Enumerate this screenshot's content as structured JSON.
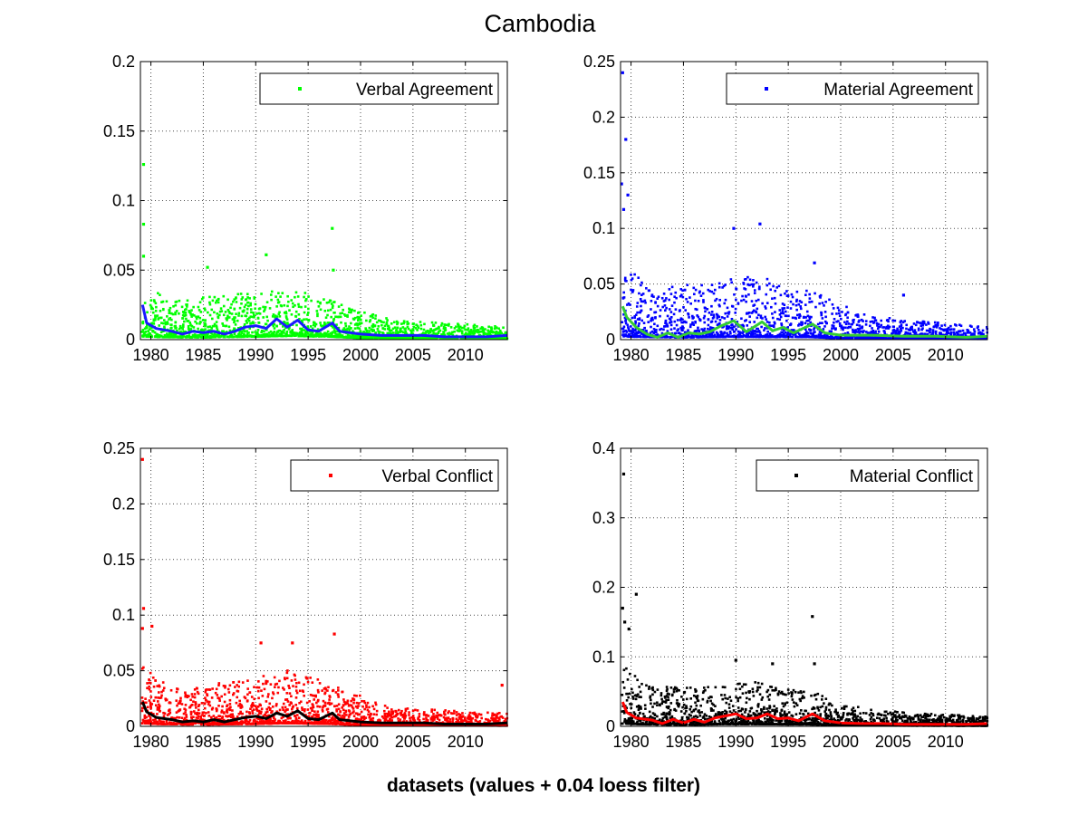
{
  "figure": {
    "title": "Cambodia",
    "footer": "datasets (values + 0.04 loess filter)"
  },
  "chart_data": [
    {
      "type": "scatter",
      "title": "",
      "xlabel": "",
      "ylabel": "",
      "xlim": [
        1979,
        2014
      ],
      "ylim": [
        0,
        0.2
      ],
      "xticks": [
        1980,
        1985,
        1990,
        1995,
        2000,
        2005,
        2010
      ],
      "yticks": [
        0,
        0.05,
        0.1,
        0.15,
        0.2
      ],
      "grid": true,
      "legend": {
        "placement": "top-right",
        "entries": [
          "Verbal Agreement"
        ]
      },
      "series": [
        {
          "name": "Verbal Agreement",
          "kind": "points",
          "color": "#00ff00",
          "marker": "dot",
          "profile": {
            "baseline": [
              [
                1979,
                0.012
              ],
              [
                1981,
                0.009
              ],
              [
                1985,
                0.008
              ],
              [
                1990,
                0.011
              ],
              [
                1993,
                0.013
              ],
              [
                1997,
                0.011
              ],
              [
                2000,
                0.006
              ],
              [
                2005,
                0.004
              ],
              [
                2014,
                0.003
              ]
            ],
            "spread": [
              [
                1979,
                0.035
              ],
              [
                1982,
                0.025
              ],
              [
                1988,
                0.028
              ],
              [
                1993,
                0.032
              ],
              [
                1998,
                0.022
              ],
              [
                2003,
                0.012
              ],
              [
                2014,
                0.008
              ]
            ]
          },
          "notable_points": [
            [
              1979.3,
              0.126
            ],
            [
              1979.3,
              0.083
            ],
            [
              1979.3,
              0.06
            ],
            [
              1985.4,
              0.052
            ],
            [
              1991.0,
              0.061
            ],
            [
              1997.3,
              0.08
            ],
            [
              1997.4,
              0.05
            ]
          ]
        },
        {
          "name": "",
          "kind": "line",
          "color": "#1a1aff",
          "points": [
            [
              1979.2,
              0.025
            ],
            [
              1979.6,
              0.012
            ],
            [
              1980.5,
              0.008
            ],
            [
              1982,
              0.006
            ],
            [
              1983,
              0.004
            ],
            [
              1984,
              0.006
            ],
            [
              1985,
              0.005
            ],
            [
              1986,
              0.006
            ],
            [
              1987,
              0.004
            ],
            [
              1988,
              0.006
            ],
            [
              1989,
              0.009
            ],
            [
              1990,
              0.01
            ],
            [
              1991,
              0.008
            ],
            [
              1992,
              0.015
            ],
            [
              1993,
              0.009
            ],
            [
              1994,
              0.014
            ],
            [
              1995,
              0.007
            ],
            [
              1996,
              0.006
            ],
            [
              1997.3,
              0.012
            ],
            [
              1998,
              0.006
            ],
            [
              2000,
              0.004
            ],
            [
              2002,
              0.003
            ],
            [
              2004,
              0.003
            ],
            [
              2006,
              0.003
            ],
            [
              2008,
              0.002
            ],
            [
              2010,
              0.002
            ],
            [
              2012,
              0.002
            ],
            [
              2014,
              0.003
            ]
          ]
        }
      ]
    },
    {
      "type": "scatter",
      "title": "",
      "xlabel": "",
      "ylabel": "",
      "xlim": [
        1979,
        2014
      ],
      "ylim": [
        0,
        0.25
      ],
      "xticks": [
        1980,
        1985,
        1990,
        1995,
        2000,
        2005,
        2010
      ],
      "yticks": [
        0,
        0.05,
        0.1,
        0.15,
        0.2,
        0.25
      ],
      "grid": true,
      "legend": {
        "placement": "top-right",
        "entries": [
          "Material Agreement"
        ]
      },
      "series": [
        {
          "name": "Material Agreement",
          "kind": "points",
          "color": "#0000ff",
          "marker": "dot",
          "profile": {
            "baseline": [
              [
                1979,
                0.015
              ],
              [
                1981,
                0.012
              ],
              [
                1985,
                0.01
              ],
              [
                1990,
                0.013
              ],
              [
                1993,
                0.012
              ],
              [
                1997,
                0.012
              ],
              [
                2000,
                0.006
              ],
              [
                2005,
                0.004
              ],
              [
                2014,
                0.003
              ]
            ],
            "spread": [
              [
                1979,
                0.06
              ],
              [
                1982,
                0.04
              ],
              [
                1988,
                0.045
              ],
              [
                1992,
                0.05
              ],
              [
                1998,
                0.035
              ],
              [
                2003,
                0.018
              ],
              [
                2014,
                0.01
              ]
            ]
          },
          "notable_points": [
            [
              1979.2,
              0.24
            ],
            [
              1979.5,
              0.18
            ],
            [
              1979.1,
              0.14
            ],
            [
              1979.7,
              0.13
            ],
            [
              1979.3,
              0.117
            ],
            [
              1989.8,
              0.1
            ],
            [
              1992.3,
              0.104
            ],
            [
              1997.5,
              0.069
            ],
            [
              2006.0,
              0.04
            ]
          ]
        },
        {
          "name": "",
          "kind": "line",
          "color": "#33cc33",
          "points": [
            [
              1979.2,
              0.03
            ],
            [
              1979.6,
              0.02
            ],
            [
              1980.5,
              0.011
            ],
            [
              1981.5,
              0.005
            ],
            [
              1982.5,
              0.002
            ],
            [
              1983.5,
              0.006
            ],
            [
              1984.5,
              0.002
            ],
            [
              1985.5,
              0.006
            ],
            [
              1986.5,
              0.005
            ],
            [
              1987.5,
              0.007
            ],
            [
              1988.5,
              0.012
            ],
            [
              1989.8,
              0.017
            ],
            [
              1991,
              0.007
            ],
            [
              1992.5,
              0.016
            ],
            [
              1993.5,
              0.008
            ],
            [
              1994.5,
              0.011
            ],
            [
              1995.5,
              0.006
            ],
            [
              1997.3,
              0.014
            ],
            [
              1998.5,
              0.006
            ],
            [
              2000,
              0.004
            ],
            [
              2003,
              0.004
            ],
            [
              2006,
              0.003
            ],
            [
              2009,
              0.003
            ],
            [
              2012,
              0.002
            ],
            [
              2014,
              0.003
            ]
          ]
        }
      ]
    },
    {
      "type": "scatter",
      "title": "",
      "xlabel": "",
      "ylabel": "",
      "xlim": [
        1979,
        2014
      ],
      "ylim": [
        0,
        0.25
      ],
      "xticks": [
        1980,
        1985,
        1990,
        1995,
        2000,
        2005,
        2010
      ],
      "yticks": [
        0,
        0.05,
        0.1,
        0.15,
        0.2,
        0.25
      ],
      "grid": true,
      "legend": {
        "placement": "top-right",
        "entries": [
          "Verbal Conflict"
        ]
      },
      "series": [
        {
          "name": "Verbal Conflict",
          "kind": "points",
          "color": "#ff0000",
          "marker": "dot",
          "profile": {
            "baseline": [
              [
                1979,
                0.014
              ],
              [
                1981,
                0.01
              ],
              [
                1985,
                0.008
              ],
              [
                1990,
                0.011
              ],
              [
                1993,
                0.014
              ],
              [
                1997,
                0.011
              ],
              [
                2000,
                0.006
              ],
              [
                2005,
                0.004
              ],
              [
                2014,
                0.003
              ]
            ],
            "spread": [
              [
                1979,
                0.05
              ],
              [
                1982,
                0.03
              ],
              [
                1988,
                0.035
              ],
              [
                1993,
                0.045
              ],
              [
                1998,
                0.03
              ],
              [
                2003,
                0.015
              ],
              [
                2014,
                0.01
              ]
            ]
          },
          "notable_points": [
            [
              1979.2,
              0.24
            ],
            [
              1979.3,
              0.106
            ],
            [
              1979.2,
              0.088
            ],
            [
              1980.1,
              0.09
            ],
            [
              1990.5,
              0.075
            ],
            [
              1993.5,
              0.075
            ],
            [
              1997.5,
              0.083
            ],
            [
              2013.5,
              0.037
            ]
          ]
        },
        {
          "name": "",
          "kind": "line",
          "color": "#000000",
          "points": [
            [
              1979.2,
              0.022
            ],
            [
              1979.6,
              0.013
            ],
            [
              1980.5,
              0.008
            ],
            [
              1982,
              0.006
            ],
            [
              1983,
              0.004
            ],
            [
              1984,
              0.005
            ],
            [
              1985,
              0.004
            ],
            [
              1986,
              0.006
            ],
            [
              1987,
              0.004
            ],
            [
              1988,
              0.006
            ],
            [
              1989,
              0.008
            ],
            [
              1990,
              0.009
            ],
            [
              1991,
              0.007
            ],
            [
              1992,
              0.012
            ],
            [
              1993,
              0.009
            ],
            [
              1994,
              0.014
            ],
            [
              1995,
              0.007
            ],
            [
              1996,
              0.006
            ],
            [
              1997.3,
              0.012
            ],
            [
              1998,
              0.006
            ],
            [
              2000,
              0.004
            ],
            [
              2002,
              0.003
            ],
            [
              2004,
              0.003
            ],
            [
              2006,
              0.003
            ],
            [
              2008,
              0.002
            ],
            [
              2010,
              0.002
            ],
            [
              2012,
              0.002
            ],
            [
              2014,
              0.003
            ]
          ]
        }
      ]
    },
    {
      "type": "scatter",
      "title": "",
      "xlabel": "",
      "ylabel": "",
      "xlim": [
        1979,
        2014
      ],
      "ylim": [
        0,
        0.4
      ],
      "xticks": [
        1980,
        1985,
        1990,
        1995,
        2000,
        2005,
        2010
      ],
      "yticks": [
        0,
        0.1,
        0.2,
        0.3,
        0.4
      ],
      "grid": true,
      "legend": {
        "placement": "top-right",
        "entries": [
          "Material Conflict"
        ]
      },
      "series": [
        {
          "name": "Material Conflict",
          "kind": "points",
          "color": "#000000",
          "marker": "dot",
          "profile": {
            "baseline": [
              [
                1979,
                0.02
              ],
              [
                1981,
                0.015
              ],
              [
                1985,
                0.012
              ],
              [
                1990,
                0.016
              ],
              [
                1993,
                0.015
              ],
              [
                1997,
                0.014
              ],
              [
                2000,
                0.008
              ],
              [
                2005,
                0.005
              ],
              [
                2014,
                0.004
              ]
            ],
            "spread": [
              [
                1979,
                0.08
              ],
              [
                1982,
                0.05
              ],
              [
                1988,
                0.05
              ],
              [
                1992,
                0.055
              ],
              [
                1998,
                0.04
              ],
              [
                2003,
                0.02
              ],
              [
                2014,
                0.012
              ]
            ]
          },
          "notable_points": [
            [
              1979.3,
              0.363
            ],
            [
              1980.5,
              0.19
            ],
            [
              1979.2,
              0.17
            ],
            [
              1979.4,
              0.15
            ],
            [
              1979.8,
              0.14
            ],
            [
              1990.0,
              0.095
            ],
            [
              1993.5,
              0.09
            ],
            [
              1997.3,
              0.158
            ],
            [
              1997.5,
              0.09
            ]
          ]
        },
        {
          "name": "",
          "kind": "line",
          "color": "#ff0000",
          "points": [
            [
              1979.2,
              0.035
            ],
            [
              1979.6,
              0.02
            ],
            [
              1980.5,
              0.012
            ],
            [
              1982,
              0.009
            ],
            [
              1983,
              0.004
            ],
            [
              1984,
              0.01
            ],
            [
              1985,
              0.005
            ],
            [
              1986,
              0.01
            ],
            [
              1987,
              0.006
            ],
            [
              1988,
              0.012
            ],
            [
              1989,
              0.015
            ],
            [
              1990,
              0.018
            ],
            [
              1991,
              0.011
            ],
            [
              1992,
              0.012
            ],
            [
              1993,
              0.018
            ],
            [
              1994,
              0.011
            ],
            [
              1995,
              0.012
            ],
            [
              1996,
              0.008
            ],
            [
              1997.3,
              0.018
            ],
            [
              1998.5,
              0.008
            ],
            [
              2000,
              0.005
            ],
            [
              2002,
              0.004
            ],
            [
              2004,
              0.004
            ],
            [
              2006,
              0.003
            ],
            [
              2008,
              0.003
            ],
            [
              2010,
              0.003
            ],
            [
              2012,
              0.003
            ],
            [
              2014,
              0.004
            ]
          ]
        }
      ]
    }
  ]
}
